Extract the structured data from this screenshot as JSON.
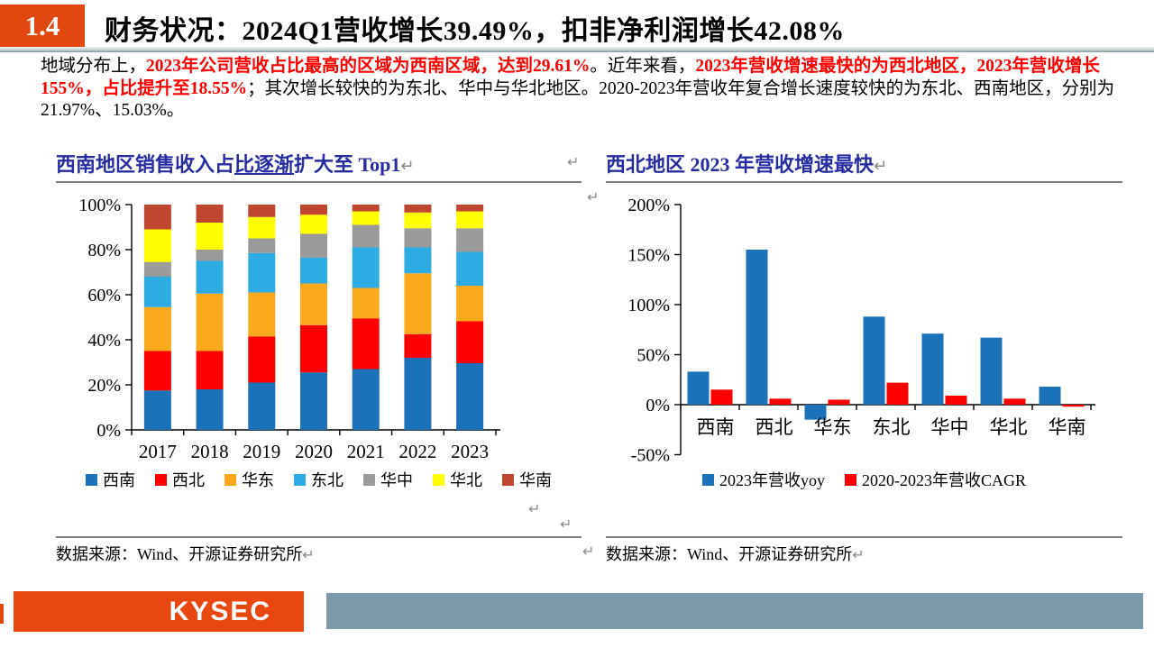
{
  "header": {
    "section_number": "1.4",
    "title": "财务状况：2024Q1营收增长39.49%，扣非净利润增长42.08%"
  },
  "paragraph": {
    "segments": [
      {
        "text": "地域分布上，",
        "style": "t-black"
      },
      {
        "text": "2023年公司营收占比最高的区域为西南区域，达到29.61%",
        "style": "t-red"
      },
      {
        "text": "。近年来看，",
        "style": "t-black"
      },
      {
        "text": "2023年营收增速最快的为西北地区，2023年营收增长155%，占比提升至18.55%",
        "style": "t-red"
      },
      {
        "text": "；其次增长较快的为东北、华中与华北地区。2020-2023年营收年复合增长速度较快的为东北、西南地区，分别为21.97%、15.03%。",
        "style": "t-black"
      }
    ]
  },
  "left_panel": {
    "title_parts": {
      "pre": "西南地区销售收入占",
      "underlined": "比逐渐",
      "post": "扩大至 Top1"
    },
    "source": "数据来源：Wind、开源证券研究所"
  },
  "right_panel": {
    "title": "西北地区 2023 年营收增速最快",
    "source": "数据来源：Wind、开源证券研究所"
  },
  "marks": {
    "return_mark": "↵"
  },
  "chart_data": [
    {
      "type": "bar",
      "variant": "stacked-100-percent",
      "title": "西南地区销售收入占比逐渐扩大至 Top1",
      "categories": [
        "2017",
        "2018",
        "2019",
        "2020",
        "2021",
        "2022",
        "2023"
      ],
      "series": [
        {
          "name": "西南",
          "color": "#1B72B8",
          "values": [
            17.5,
            18.0,
            21.0,
            25.5,
            27.0,
            32.0,
            29.6
          ]
        },
        {
          "name": "西北",
          "color": "#FF0000",
          "values": [
            17.5,
            17.0,
            20.5,
            21.0,
            22.5,
            10.5,
            18.6
          ]
        },
        {
          "name": "华东",
          "color": "#F9A91B",
          "values": [
            19.5,
            25.5,
            19.5,
            18.5,
            13.5,
            27.0,
            15.8
          ]
        },
        {
          "name": "东北",
          "color": "#2CACE3",
          "values": [
            13.5,
            14.5,
            17.5,
            11.5,
            18.0,
            11.5,
            15.0
          ]
        },
        {
          "name": "华中",
          "color": "#9A9A9A",
          "values": [
            6.5,
            5.0,
            6.5,
            10.5,
            10.0,
            8.5,
            10.5
          ]
        },
        {
          "name": "华北",
          "color": "#FFFF00",
          "values": [
            14.5,
            12.0,
            9.5,
            8.5,
            6.0,
            7.0,
            7.5
          ]
        },
        {
          "name": "华南",
          "color": "#C0462F",
          "values": [
            11.0,
            8.0,
            5.5,
            4.5,
            3.0,
            3.5,
            3.0
          ]
        }
      ],
      "ylim": [
        0,
        100
      ],
      "ytick_step": 20,
      "ytick_suffix": "%",
      "grid": false,
      "legend_position": "bottom"
    },
    {
      "type": "bar",
      "variant": "grouped",
      "title": "西北地区 2023 年营收增速最快",
      "categories": [
        "西南",
        "西北",
        "华东",
        "东北",
        "华中",
        "华北",
        "华南"
      ],
      "series": [
        {
          "name": "2023年营收yoy",
          "color": "#1B72B8",
          "values": [
            33,
            155,
            -15,
            88,
            71,
            67,
            18
          ]
        },
        {
          "name": "2020-2023年营收CAGR",
          "color": "#FF0000",
          "values": [
            15.03,
            6,
            5,
            21.97,
            9,
            6,
            -2
          ]
        }
      ],
      "ylim": [
        -50,
        200
      ],
      "ytick_step": 50,
      "ytick_suffix": "%",
      "grid": false,
      "legend_position": "bottom"
    }
  ],
  "footer": {
    "logo_text": "KYSEC",
    "logo_bg": "#E8470F",
    "bar_color": "#7C9AA9"
  }
}
